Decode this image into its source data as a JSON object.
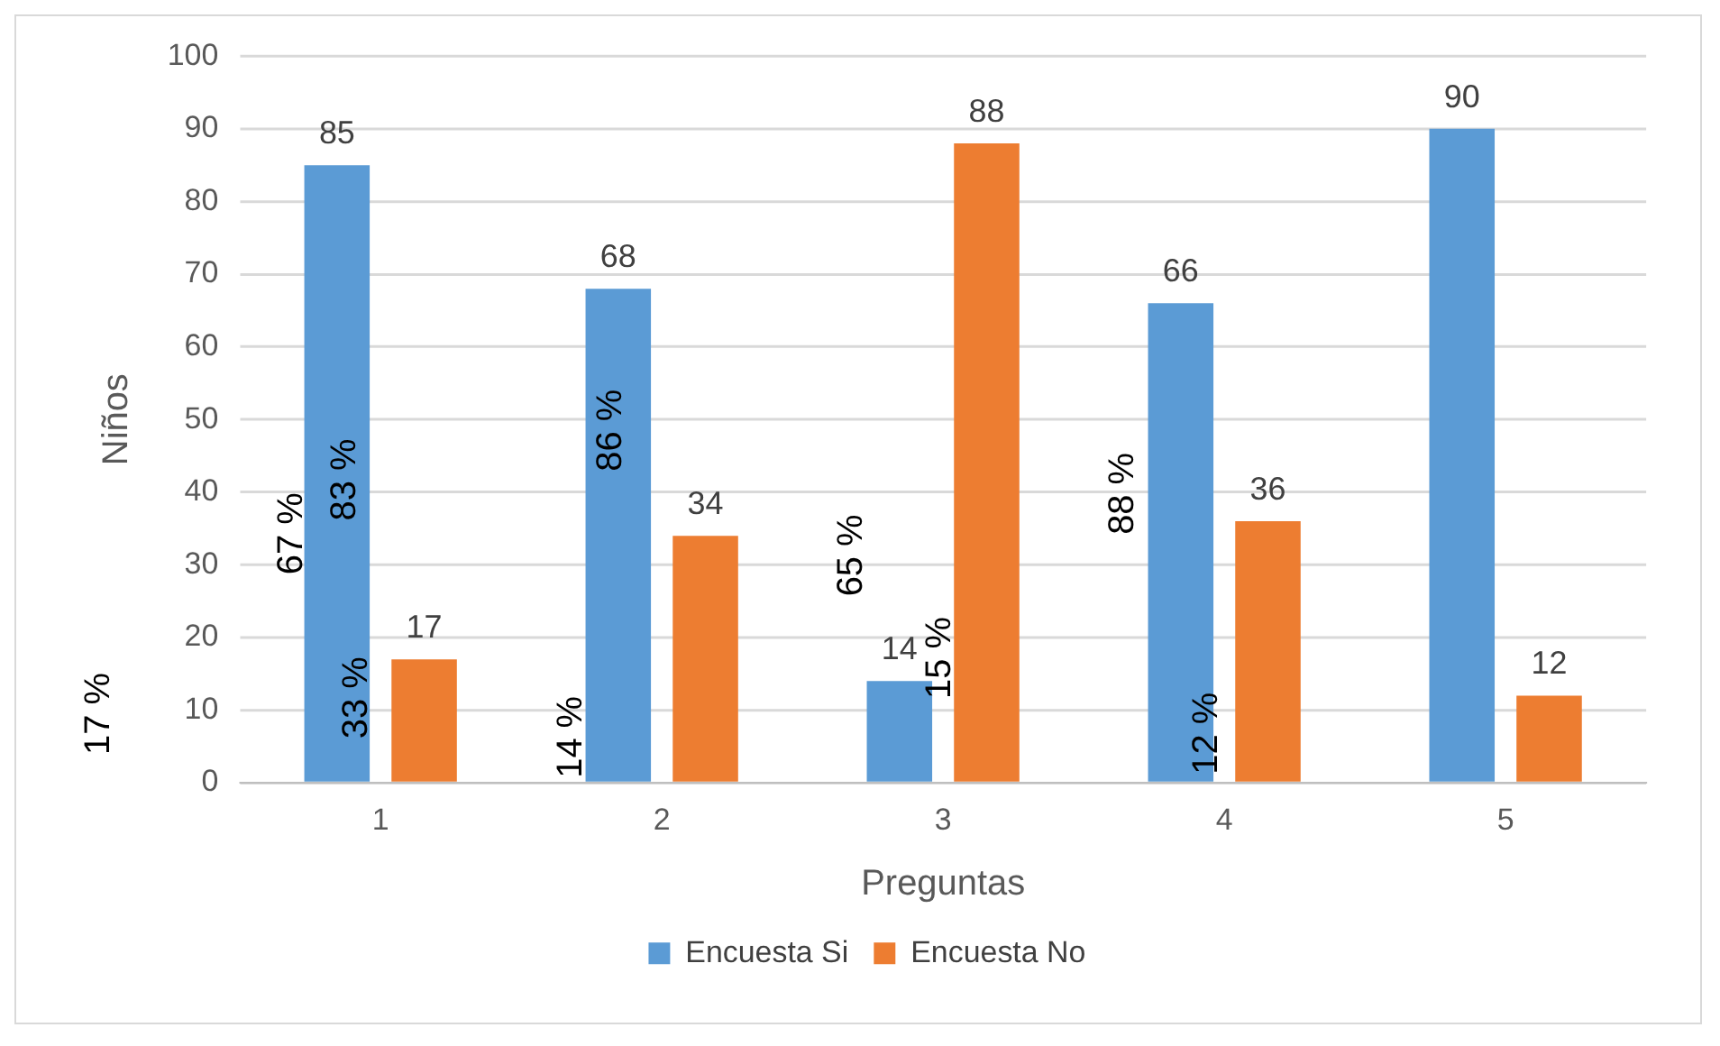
{
  "chart_data": {
    "type": "bar",
    "categories": [
      "1",
      "2",
      "3",
      "4",
      "5"
    ],
    "series": [
      {
        "name": "Encuesta Si",
        "color": "#5b9bd5",
        "values": [
          85,
          68,
          14,
          66,
          90
        ]
      },
      {
        "name": "Encuesta No",
        "color": "#ed7d31",
        "values": [
          17,
          34,
          88,
          36,
          12
        ]
      }
    ],
    "xlabel": "Preguntas",
    "ylabel": "Niños",
    "ylim": [
      0,
      100
    ],
    "yticks": [
      0,
      10,
      20,
      30,
      40,
      50,
      60,
      70,
      80,
      90,
      100
    ],
    "grid": "y",
    "legend": "bottom",
    "data_labels": true,
    "annotations": [
      "67 %",
      "83 %",
      "33 %",
      "17 %",
      "14 %",
      "86 %",
      "65 %",
      "15 %",
      "88 %",
      "12 %"
    ]
  }
}
